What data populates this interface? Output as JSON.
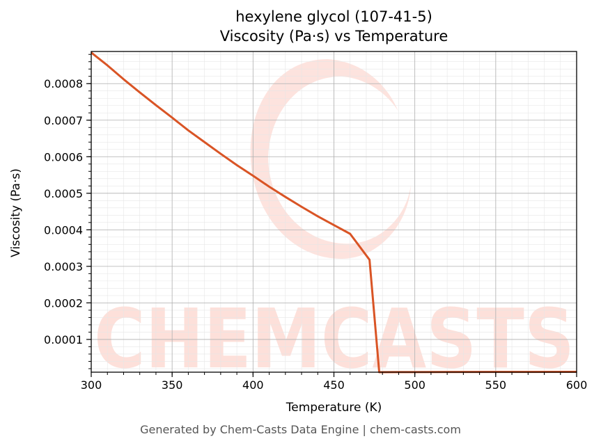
{
  "chart_data": {
    "type": "line",
    "title": "hexylene glycol (107-41-5)",
    "subtitle": "Viscosity (Pa·s) vs Temperature",
    "xlabel": "Temperature (K)",
    "ylabel": "Viscosity (Pa·s)",
    "xlim": [
      300,
      600
    ],
    "ylim": [
      1.04e-05,
      0.000888
    ],
    "xticks": [
      300,
      350,
      400,
      450,
      500,
      550,
      600
    ],
    "xtick_labels": [
      "300",
      "350",
      "400",
      "450",
      "500",
      "550",
      "600"
    ],
    "yticks": [
      0.0001,
      0.0002,
      0.0003,
      0.0004,
      0.0005,
      0.0006,
      0.0007,
      0.0008
    ],
    "ytick_labels": [
      "0.0001",
      "0.0002",
      "0.0003",
      "0.0004",
      "0.0005",
      "0.0006",
      "0.0007",
      "0.0008"
    ],
    "grid": true,
    "series": [
      {
        "color": "#d95425",
        "x": [
          300,
          310,
          320,
          330,
          340,
          350,
          360,
          370,
          380,
          390,
          400,
          410,
          420,
          430,
          440,
          450,
          460,
          472,
          478,
          490,
          500,
          550,
          600
        ],
        "y": [
          0.000885,
          0.00085,
          0.000812,
          0.000776,
          0.000741,
          0.000707,
          0.000672,
          0.00064,
          0.000608,
          0.000577,
          0.000548,
          0.000518,
          0.00049,
          0.000463,
          0.000437,
          0.000413,
          0.000389,
          0.000318,
          1.05e-05,
          1.06e-05,
          1.07e-05,
          1.1e-05,
          1.14e-05
        ]
      }
    ]
  },
  "watermark": {
    "text": "CHEMCASTS",
    "color": "#fde0da"
  },
  "footer": "Generated by Chem-Casts Data Engine | chem-casts.com"
}
